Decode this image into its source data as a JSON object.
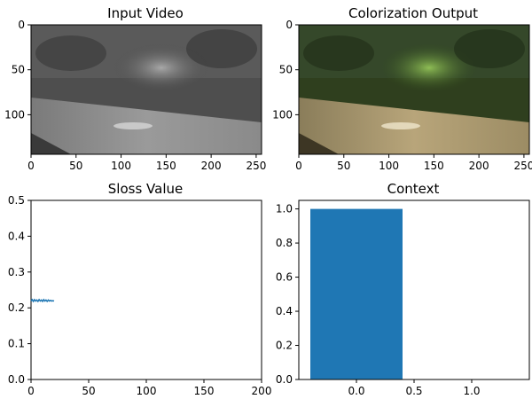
{
  "chart_data": [
    {
      "type": "image",
      "title": "Input Video",
      "xticks": [
        0,
        50,
        100,
        150,
        200,
        250
      ],
      "yticks": [
        0,
        50,
        100
      ],
      "xlim": [
        0,
        256
      ],
      "ylim": [
        144,
        0
      ]
    },
    {
      "type": "image",
      "title": "Colorization Output",
      "xticks": [
        0,
        50,
        100,
        150,
        200,
        250
      ],
      "yticks": [
        0,
        50,
        100
      ],
      "xlim": [
        0,
        256
      ],
      "ylim": [
        144,
        0
      ]
    },
    {
      "type": "line",
      "title": "Sloss Value",
      "xlim": [
        0,
        200
      ],
      "ylim": [
        0,
        0.5
      ],
      "xticks": [
        0,
        50,
        100,
        150,
        200
      ],
      "yticks": [
        0.0,
        0.1,
        0.2,
        0.3,
        0.4,
        0.5
      ],
      "x": [
        0,
        1,
        2,
        3,
        4,
        5,
        6,
        7,
        8,
        9,
        10,
        11,
        12,
        13,
        14,
        15,
        16,
        17,
        18,
        19,
        20
      ],
      "y": [
        0.219,
        0.223,
        0.218,
        0.223,
        0.219,
        0.222,
        0.218,
        0.223,
        0.219,
        0.222,
        0.218,
        0.223,
        0.219,
        0.222,
        0.218,
        0.222,
        0.219,
        0.221,
        0.219,
        0.22,
        0.219
      ],
      "color": "#1f77b4"
    },
    {
      "type": "bar",
      "title": "Context",
      "xlim": [
        -0.5,
        1.5
      ],
      "ylim": [
        0,
        1.05
      ],
      "xticks": [
        0.0,
        0.5,
        1.0
      ],
      "yticks": [
        0.0,
        0.2,
        0.4,
        0.6,
        0.8,
        1.0
      ],
      "categories": [
        0
      ],
      "values": [
        1.0
      ],
      "bar_width": 0.8,
      "color": "#1f77b4"
    }
  ]
}
